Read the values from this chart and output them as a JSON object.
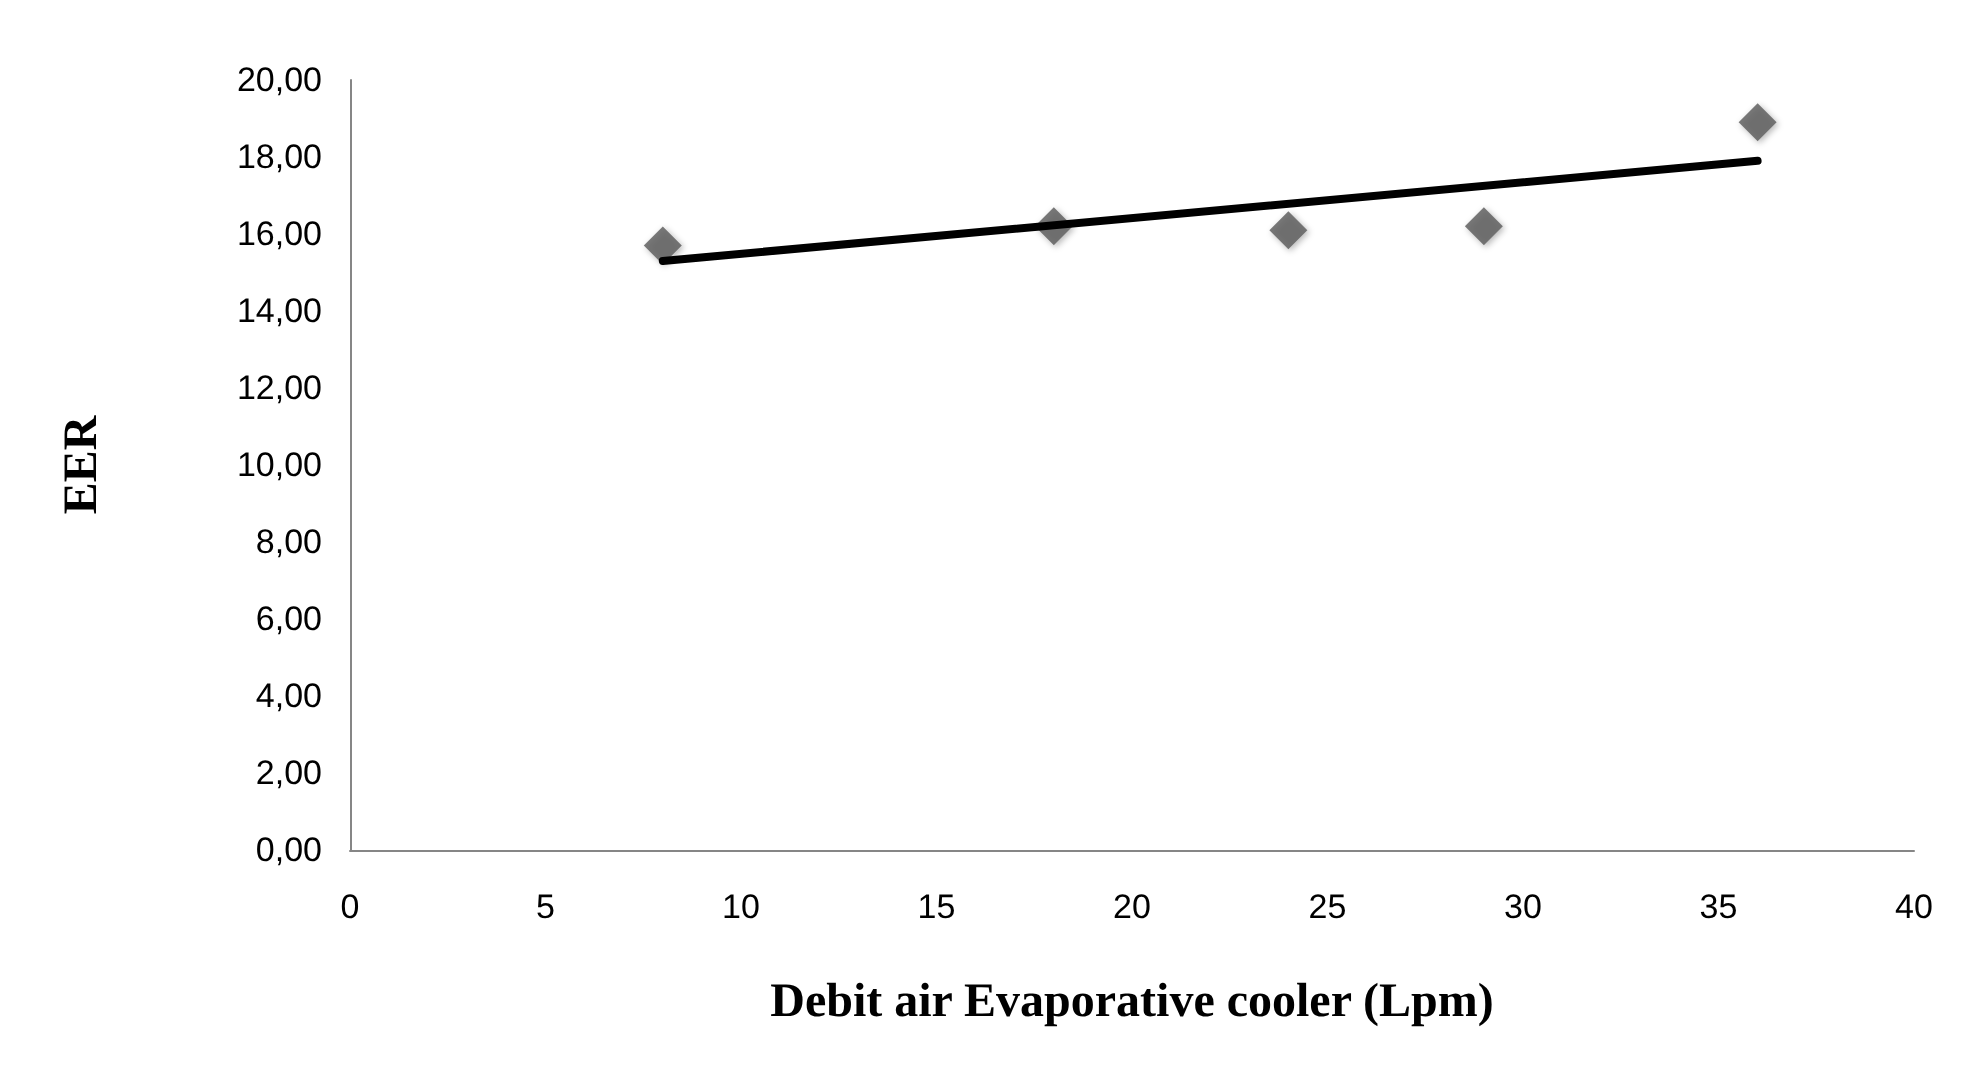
{
  "chart_data": {
    "type": "scatter",
    "xlabel": "Debit air Evaporative cooler (Lpm)",
    "ylabel": "EER",
    "x": [
      8,
      18,
      24,
      29,
      36
    ],
    "series": [
      {
        "color": "#595959",
        "values": [
          15.7,
          16.2,
          16.1,
          16.2,
          18.9
        ],
        "marker": "diamond"
      },
      {
        "type": "line",
        "color": "#000000",
        "x": [
          8,
          36
        ],
        "values": [
          15.3,
          17.9
        ],
        "marker": "none"
      }
    ],
    "xlim": [
      0,
      40
    ],
    "xticks": [
      0,
      5,
      10,
      15,
      20,
      25,
      30,
      35,
      40
    ],
    "ylim": [
      0,
      20
    ],
    "yticks": [
      {
        "value": 0,
        "label": "0,00"
      },
      {
        "value": 2,
        "label": "2,00"
      },
      {
        "value": 4,
        "label": "4,00"
      },
      {
        "value": 6,
        "label": "6,00"
      },
      {
        "value": 8,
        "label": "8,00"
      },
      {
        "value": 10,
        "label": "10,00"
      },
      {
        "value": 12,
        "label": "12,00"
      },
      {
        "value": 14,
        "label": "14,00"
      },
      {
        "value": 16,
        "label": "16,00"
      },
      {
        "value": 18,
        "label": "18,00"
      },
      {
        "value": 20,
        "label": "20,00"
      }
    ],
    "grid": false
  }
}
